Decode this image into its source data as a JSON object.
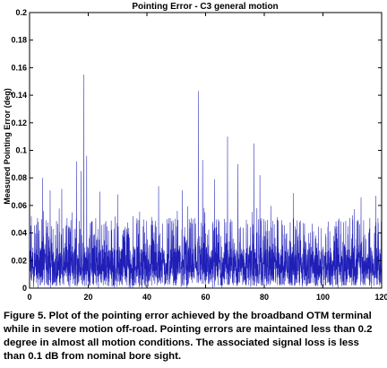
{
  "chart_data": {
    "type": "line",
    "title": "Pointing Error - C3 general motion",
    "xlabel": "",
    "ylabel": "Measured Pointing Error (deg)",
    "xlim": [
      0,
      120
    ],
    "ylim": [
      0,
      0.2
    ],
    "xticks": [
      "0",
      "20",
      "40",
      "60",
      "80",
      "100",
      "120"
    ],
    "yticks": [
      "0",
      "0.02",
      "0.04",
      "0.06",
      "0.08",
      "0.1",
      "0.12",
      "0.14",
      "0.16",
      "0.18",
      "0.2"
    ],
    "grid": false,
    "legend": "none",
    "color": "#1f1fb8",
    "baseline_typical": 0.025,
    "noise_envelope_max": 0.06,
    "peaks": [
      {
        "x": 4.5,
        "y": 0.08
      },
      {
        "x": 7.0,
        "y": 0.071
      },
      {
        "x": 11.0,
        "y": 0.072
      },
      {
        "x": 16.0,
        "y": 0.092
      },
      {
        "x": 17.5,
        "y": 0.085
      },
      {
        "x": 18.5,
        "y": 0.155
      },
      {
        "x": 19.5,
        "y": 0.096
      },
      {
        "x": 24.0,
        "y": 0.07
      },
      {
        "x": 30.0,
        "y": 0.068
      },
      {
        "x": 44.0,
        "y": 0.074
      },
      {
        "x": 52.0,
        "y": 0.071
      },
      {
        "x": 57.5,
        "y": 0.143
      },
      {
        "x": 59.0,
        "y": 0.093
      },
      {
        "x": 63.0,
        "y": 0.079
      },
      {
        "x": 67.5,
        "y": 0.11
      },
      {
        "x": 71.0,
        "y": 0.09
      },
      {
        "x": 76.5,
        "y": 0.105
      },
      {
        "x": 78.5,
        "y": 0.082
      },
      {
        "x": 90.0,
        "y": 0.069
      },
      {
        "x": 113.0,
        "y": 0.066
      },
      {
        "x": 118.0,
        "y": 0.067
      }
    ]
  },
  "caption": {
    "text": "Figure 5. Plot of the pointing error achieved by the broadband OTM terminal while in severe motion off-road. Pointing errors are maintained less than 0.2 degree in almost all motion conditions. The associated signal loss is less than 0.1 dB from nominal bore sight."
  }
}
